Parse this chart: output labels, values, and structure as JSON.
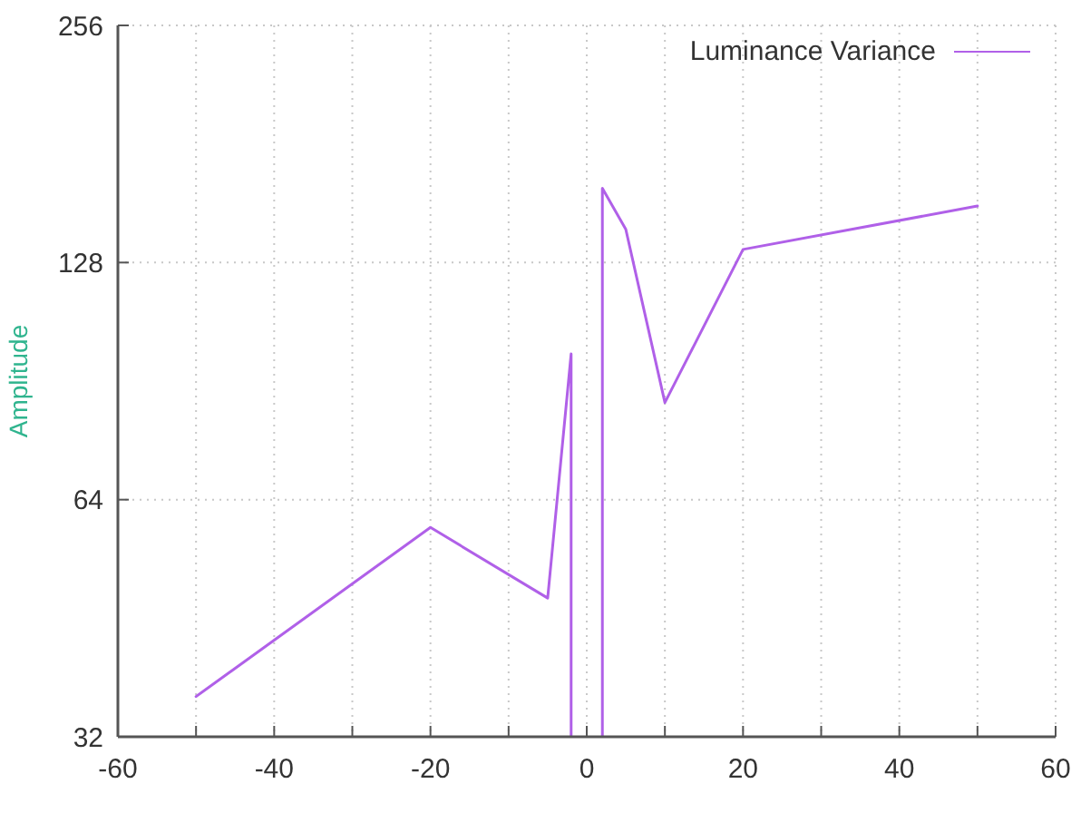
{
  "chart_data": {
    "type": "line",
    "ylabel": "Amplitude",
    "x": [
      -50,
      -20,
      -5,
      -2,
      -2,
      0,
      2,
      2,
      5,
      10,
      20,
      50
    ],
    "series": [
      {
        "name": "Luminance Variance",
        "color": "#b060e8",
        "values": [
          36,
          59,
          48,
          98,
          32,
          null,
          32,
          159,
          141,
          85,
          133,
          151
        ]
      }
    ],
    "xlim": [
      -60,
      60
    ],
    "xticks": [
      -60,
      {
        "value": -50,
        "label": null
      },
      -40,
      {
        "value": -30,
        "label": null
      },
      -20,
      {
        "value": -10,
        "label": null
      },
      0,
      {
        "value": 10,
        "label": null
      },
      20,
      {
        "value": 30,
        "label": null
      },
      40,
      {
        "value": 50,
        "label": null
      },
      60
    ],
    "ylim": [
      32,
      256
    ],
    "yticks": [
      32,
      64,
      128,
      256
    ],
    "log": "y",
    "grid": true,
    "legend": "top right",
    "marker": "none",
    "line_style": "solid"
  }
}
